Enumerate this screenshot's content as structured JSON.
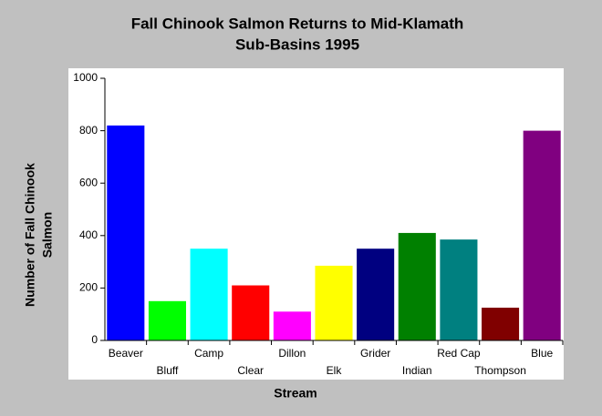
{
  "chart_data": {
    "type": "bar",
    "title": [
      "Fall Chinook Salmon Returns to Mid-Klamath",
      "Sub-Basins 1995"
    ],
    "x_label": "Stream",
    "y_label": [
      "Number of Fall Chinook",
      "Salmon"
    ],
    "categories": [
      "Beaver",
      "Bluff",
      "Camp",
      "Clear",
      "Dillon",
      "Elk",
      "Grider",
      "Indian",
      "Red Cap",
      "Thompson",
      "Blue"
    ],
    "values": [
      820,
      150,
      350,
      210,
      110,
      285,
      350,
      410,
      385,
      125,
      800
    ],
    "colors": [
      "#0000ff",
      "#00ff00",
      "#00ffff",
      "#ff0000",
      "#ff00ff",
      "#ffff00",
      "#000080",
      "#008000",
      "#008080",
      "#800000",
      "#800080"
    ],
    "ylim": [
      0,
      1000
    ],
    "yticks": [
      0,
      200,
      400,
      600,
      800,
      1000
    ],
    "grid": false
  }
}
